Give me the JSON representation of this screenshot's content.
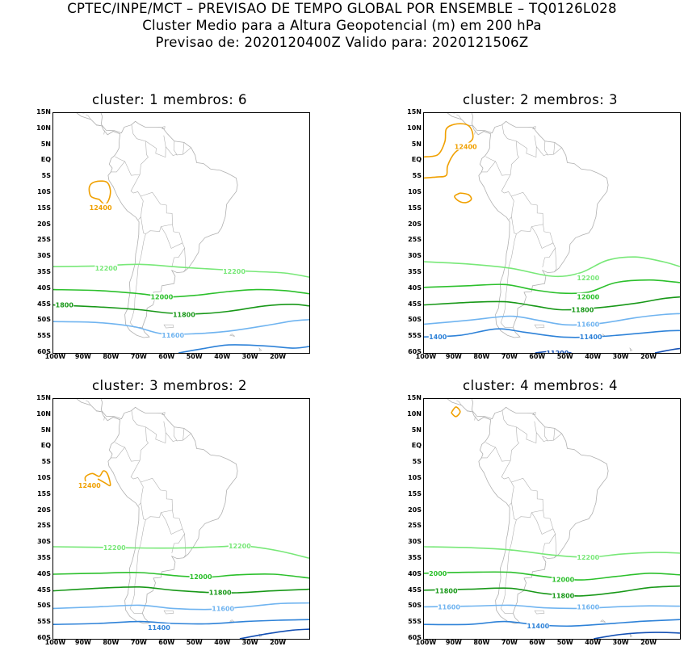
{
  "header": {
    "line1": "CPTEC/INPE/MCT – PREVISAO DE TEMPO GLOBAL POR ENSEMBLE – TQ0126L028",
    "line2": "Cluster Medio para a Altura Geopotencial (m) em 200 hPa",
    "line3": "Previsao de: 2020120400Z    Valido para: 2020121506Z"
  },
  "axes": {
    "lat_labels": [
      "15N",
      "10N",
      "5N",
      "EQ",
      "5S",
      "10S",
      "15S",
      "20S",
      "25S",
      "30S",
      "35S",
      "40S",
      "45S",
      "50S",
      "55S",
      "60S"
    ],
    "lon_labels": [
      "100W",
      "90W",
      "80W",
      "70W",
      "60W",
      "50W",
      "40W",
      "30W",
      "20W"
    ]
  },
  "colors": {
    "c12400": "#f0a000",
    "c12200": "#78e878",
    "c12000": "#2cc02c",
    "c11800": "#189818",
    "c11600": "#70b4f0",
    "c11400": "#2e82d8",
    "c11200": "#1450b4",
    "coast": "#b0b0b0"
  },
  "panels": [
    {
      "title": "cluster:  1    membros:  6",
      "labels": [
        {
          "text": "12400",
          "lon": -84,
          "lat": -14.5,
          "color": "c12400"
        },
        {
          "text": "12200",
          "lon": -82,
          "lat": -33.5,
          "color": "c12200"
        },
        {
          "text": "12200",
          "lon": -36,
          "lat": -34.5,
          "color": "c12200"
        },
        {
          "text": "12000",
          "lon": -62,
          "lat": -42.5,
          "color": "c12000"
        },
        {
          "text": "1800",
          "lon": -97,
          "lat": -45,
          "color": "c11800"
        },
        {
          "text": "11800",
          "lon": -54,
          "lat": -48,
          "color": "c11800"
        },
        {
          "text": "11600",
          "lon": -58,
          "lat": -54.5,
          "color": "c11600"
        }
      ]
    },
    {
      "title": "cluster:  2    membros:  3",
      "labels": [
        {
          "text": "12400",
          "lon": -86,
          "lat": 4.5,
          "color": "c12400"
        },
        {
          "text": "12200",
          "lon": -42,
          "lat": -36.5,
          "color": "c12200"
        },
        {
          "text": "12000",
          "lon": -42,
          "lat": -42.5,
          "color": "c12000"
        },
        {
          "text": "11800",
          "lon": -44,
          "lat": -46.5,
          "color": "c11800"
        },
        {
          "text": "11600",
          "lon": -42,
          "lat": -51,
          "color": "c11600"
        },
        {
          "text": "1400",
          "lon": -96,
          "lat": -55,
          "color": "c11400"
        },
        {
          "text": "11400",
          "lon": -41,
          "lat": -55,
          "color": "c11400"
        },
        {
          "text": "11200",
          "lon": -53,
          "lat": -60,
          "color": "c11200"
        }
      ]
    },
    {
      "title": "cluster:  3    membros:  2",
      "labels": [
        {
          "text": "12400",
          "lon": -88,
          "lat": -12,
          "color": "c12400"
        },
        {
          "text": "12200",
          "lon": -79,
          "lat": -31.5,
          "color": "c12200"
        },
        {
          "text": "12200",
          "lon": -34,
          "lat": -31,
          "color": "c12200"
        },
        {
          "text": "12000",
          "lon": -48,
          "lat": -40.5,
          "color": "c12000"
        },
        {
          "text": "11800",
          "lon": -41,
          "lat": -45.5,
          "color": "c11800"
        },
        {
          "text": "11600",
          "lon": -40,
          "lat": -50.5,
          "color": "c11600"
        },
        {
          "text": "11400",
          "lon": -63,
          "lat": -56.5,
          "color": "c11400"
        }
      ]
    },
    {
      "title": "cluster:  4    membros:  4",
      "labels": [
        {
          "text": "12200",
          "lon": -42,
          "lat": -34.5,
          "color": "c12200"
        },
        {
          "text": "2000",
          "lon": -96,
          "lat": -39.5,
          "color": "c12000"
        },
        {
          "text": "12000",
          "lon": -51,
          "lat": -41.5,
          "color": "c12000"
        },
        {
          "text": "11800",
          "lon": -93,
          "lat": -45,
          "color": "c11800"
        },
        {
          "text": "11800",
          "lon": -51,
          "lat": -46.5,
          "color": "c11800"
        },
        {
          "text": "11600",
          "lon": -92,
          "lat": -50,
          "color": "c11600"
        },
        {
          "text": "11600",
          "lon": -42,
          "lat": -50,
          "color": "c11600"
        },
        {
          "text": "11400",
          "lon": -60,
          "lat": -56,
          "color": "c11400"
        }
      ]
    }
  ]
}
